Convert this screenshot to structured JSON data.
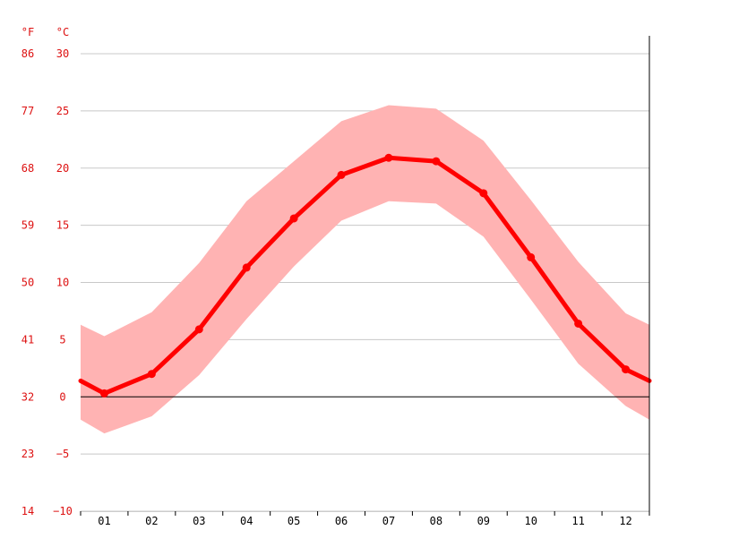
{
  "chart_data": {
    "type": "line",
    "title": "",
    "xlabel": "",
    "ylabel": "",
    "unit_left": "°F",
    "unit_right": "°C",
    "categories": [
      "01",
      "02",
      "03",
      "04",
      "05",
      "06",
      "07",
      "08",
      "09",
      "10",
      "11",
      "12"
    ],
    "ylim": [
      -10,
      30
    ],
    "yticks_c": [
      30,
      25,
      20,
      15,
      10,
      5,
      0,
      -5,
      -10
    ],
    "yticks_f": [
      86,
      77,
      68,
      59,
      50,
      41,
      32,
      23,
      14
    ],
    "series": [
      {
        "values": [
          0.3,
          2.0,
          5.9,
          11.3,
          15.6,
          19.4,
          20.9,
          20.6,
          17.8,
          12.2,
          6.4,
          2.4
        ]
      }
    ],
    "range": {
      "upper": [
        5.3,
        7.4,
        11.7,
        17.1,
        20.6,
        24.1,
        25.5,
        25.2,
        22.4,
        17.2,
        11.8,
        7.3
      ],
      "lower": [
        -3.2,
        -1.7,
        1.9,
        6.8,
        11.4,
        15.4,
        17.1,
        16.9,
        14.0,
        8.5,
        2.9,
        -0.8
      ]
    },
    "edge": {
      "line": [
        1.4,
        1.4
      ],
      "upper": [
        6.3,
        6.3
      ],
      "lower": [
        -2.0,
        -2.0
      ]
    },
    "grid": true,
    "legend": "none",
    "colors": {
      "line": "#ff0000",
      "band": "#ffb3b3",
      "tick_label": "#dd1111",
      "grid": "#c8c8c8",
      "zero_line": "#000000",
      "axis": "#000000"
    }
  }
}
